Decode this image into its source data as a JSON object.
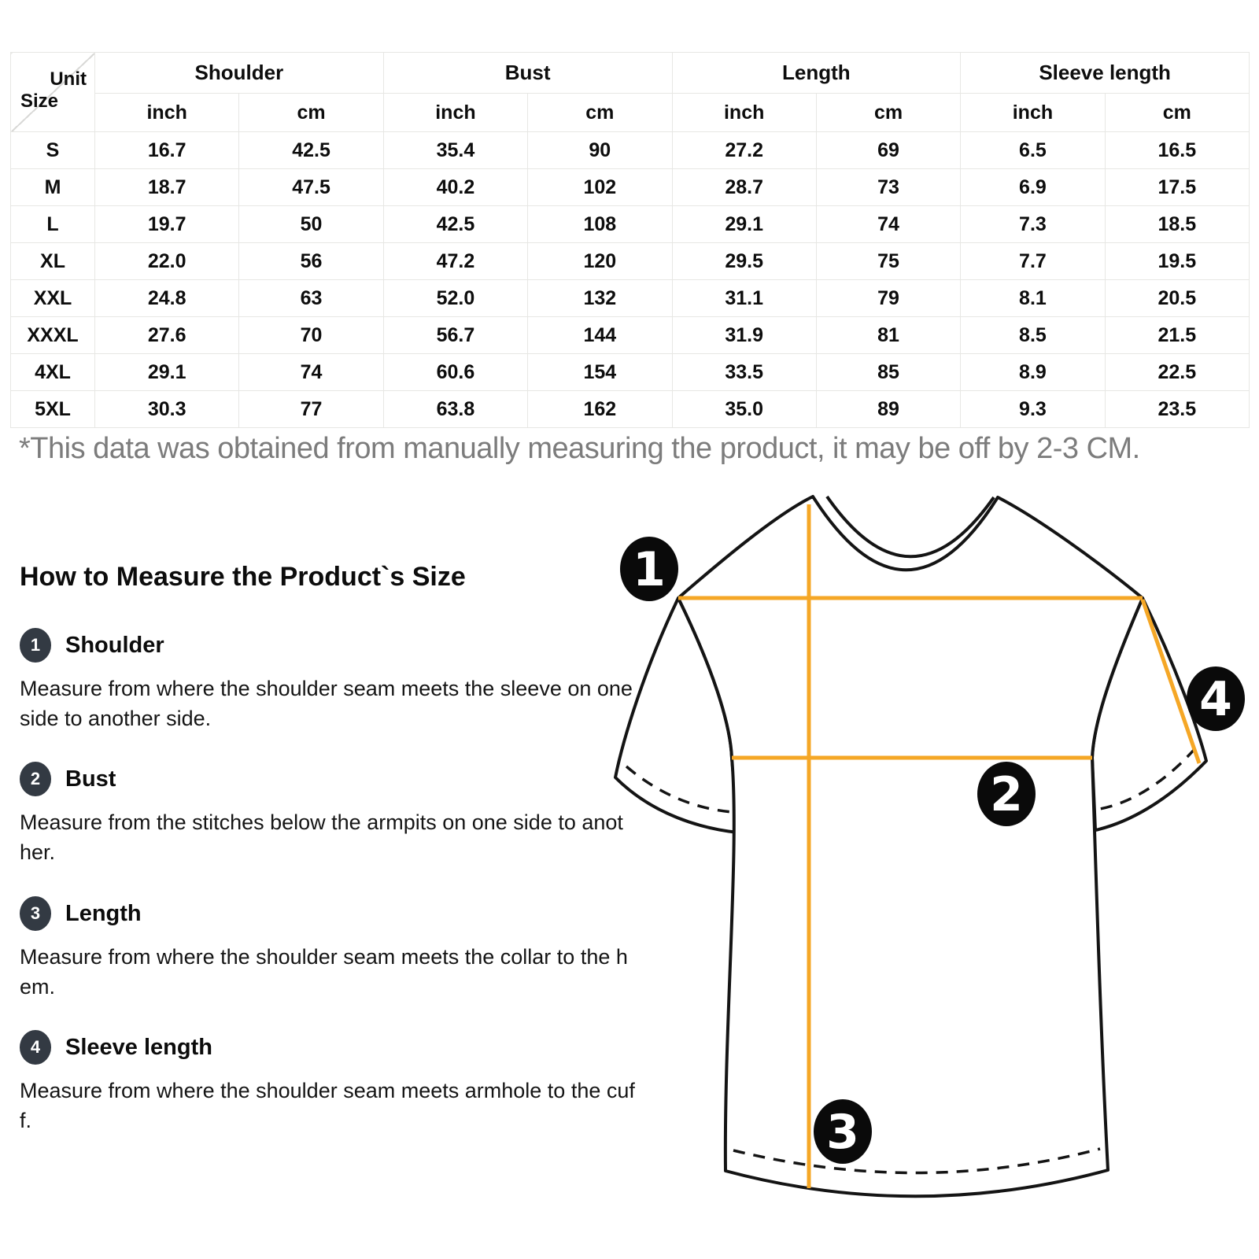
{
  "size_table": {
    "corner": {
      "top": "Unit",
      "bottom": "Size"
    },
    "groups": [
      "Shoulder",
      "Bust",
      "Length",
      "Sleeve length"
    ],
    "unit_headers": [
      "inch",
      "cm",
      "inch",
      "cm",
      "inch",
      "cm",
      "inch",
      "cm"
    ],
    "rows": [
      {
        "size": "S",
        "values": [
          "16.7",
          "42.5",
          "35.4",
          "90",
          "27.2",
          "69",
          "6.5",
          "16.5"
        ]
      },
      {
        "size": "M",
        "values": [
          "18.7",
          "47.5",
          "40.2",
          "102",
          "28.7",
          "73",
          "6.9",
          "17.5"
        ]
      },
      {
        "size": "L",
        "values": [
          "19.7",
          "50",
          "42.5",
          "108",
          "29.1",
          "74",
          "7.3",
          "18.5"
        ]
      },
      {
        "size": "XL",
        "values": [
          "22.0",
          "56",
          "47.2",
          "120",
          "29.5",
          "75",
          "7.7",
          "19.5"
        ]
      },
      {
        "size": "XXL",
        "values": [
          "24.8",
          "63",
          "52.0",
          "132",
          "31.1",
          "79",
          "8.1",
          "20.5"
        ]
      },
      {
        "size": "XXXL",
        "values": [
          "27.6",
          "70",
          "56.7",
          "144",
          "31.9",
          "81",
          "8.5",
          "21.5"
        ]
      },
      {
        "size": "4XL",
        "values": [
          "29.1",
          "74",
          "60.6",
          "154",
          "33.5",
          "85",
          "8.9",
          "22.5"
        ]
      },
      {
        "size": "5XL",
        "values": [
          "30.3",
          "77",
          "63.8",
          "162",
          "35.0",
          "89",
          "9.3",
          "23.5"
        ]
      }
    ]
  },
  "note": "*This data was obtained from manually measuring the product, it may be off by 2-3 CM.",
  "how_to": {
    "title": "How to Measure the Product`s Size",
    "steps": [
      {
        "num": "1",
        "label": "Shoulder",
        "desc": "Measure from where the shoulder seam meets the sleeve on one\nside to another side."
      },
      {
        "num": "2",
        "label": "Bust",
        "desc": "Measure from the stitches below the armpits on one side to anot\nher."
      },
      {
        "num": "3",
        "label": "Length",
        "desc": "Measure from where the shoulder seam meets the collar to the h\nem."
      },
      {
        "num": "4",
        "label": "Sleeve length",
        "desc": "Measure from where the shoulder seam meets armhole to the cuf\nf."
      }
    ]
  },
  "diagram": {
    "markers": [
      "1",
      "2",
      "3",
      "4"
    ],
    "line_color": "#F5A726",
    "marker_bg": "#0a0a0a"
  }
}
